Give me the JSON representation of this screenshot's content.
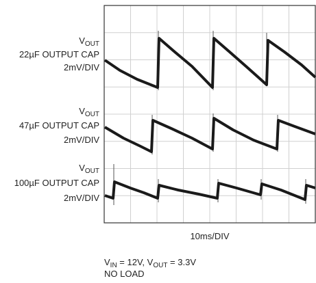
{
  "traces": [
    {
      "symbol": "V",
      "subscript": "OUT",
      "capacitor": "22µF OUTPUT CAP",
      "scale": "2mV/DIV"
    },
    {
      "symbol": "V",
      "subscript": "OUT",
      "capacitor": "47µF OUTPUT CAP",
      "scale": "2mV/DIV"
    },
    {
      "symbol": "V",
      "subscript": "OUT",
      "capacitor": "100µF OUTPUT CAP",
      "scale": "2mV/DIV"
    }
  ],
  "x_axis_label": "10ms/DIV",
  "conditions": {
    "line1": [
      {
        "text": "V"
      },
      {
        "sub": "IN"
      },
      {
        "text": " = 12V, V"
      },
      {
        "sub": "OUT"
      },
      {
        "text": " = 3.3V"
      }
    ],
    "line2": "NO LOAD"
  }
}
